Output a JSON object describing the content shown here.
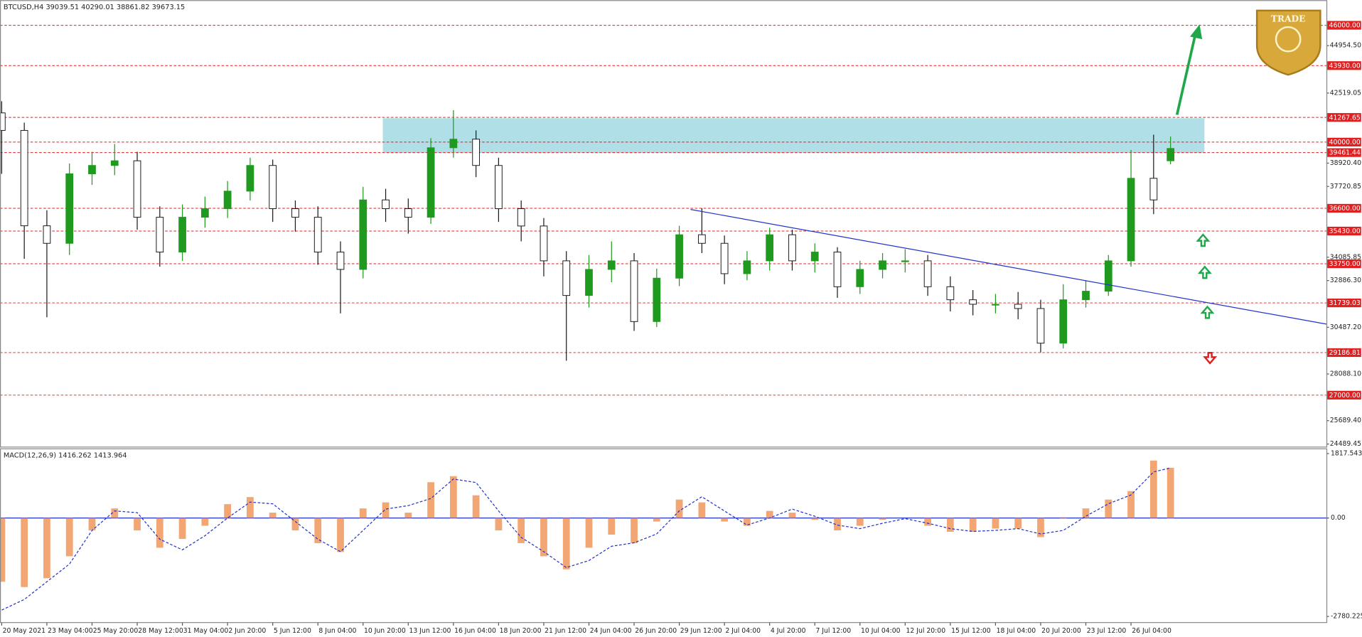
{
  "chart_data": [
    {
      "type": "candlestick",
      "title": "BTCUSD,H4",
      "logo_text": "TRADE",
      "up_color": "#1f9a1f",
      "down_color": "#1a1a1a",
      "level_color": "#e02020",
      "zone_color": "#a9dbe4",
      "trend_color": "#2233cc",
      "xlim": [
        -0.6,
        469.2
      ],
      "ylim": [
        24355,
        47294
      ],
      "x": [
        0,
        8,
        16,
        24,
        32,
        40,
        48,
        56,
        64,
        72,
        80,
        88,
        96,
        104,
        112,
        120,
        128,
        136,
        144,
        152,
        160,
        168,
        176,
        184,
        192,
        200,
        208,
        216,
        224,
        232,
        240,
        248,
        256,
        264,
        272,
        280,
        288,
        296,
        304,
        312,
        320,
        328,
        336,
        344,
        352,
        360,
        368,
        376,
        384,
        392,
        400,
        408,
        414
      ],
      "open": [
        41500,
        40600,
        35700,
        34800,
        38370,
        38800,
        39040,
        36140,
        34350,
        36140,
        36580,
        37480,
        38800,
        36580,
        36140,
        34350,
        33460,
        37030,
        36580,
        36140,
        39710,
        40150,
        38800,
        36580,
        35690,
        33900,
        32120,
        33460,
        33900,
        30780,
        33010,
        35240,
        34800,
        33240,
        33900,
        35240,
        33900,
        34350,
        32570,
        33460,
        33900,
        33900,
        32570,
        31900,
        31670,
        31670,
        31450,
        29670,
        31900,
        32340,
        33900,
        38140,
        39039.51
      ],
      "high": [
        42100,
        41000,
        36500,
        38900,
        39500,
        39900,
        39500,
        36700,
        36800,
        37200,
        38000,
        39200,
        39100,
        37000,
        36700,
        34900,
        37700,
        37600,
        37100,
        40200,
        41640,
        40600,
        39200,
        37000,
        36100,
        34400,
        34200,
        34900,
        34300,
        33500,
        35700,
        36600,
        35200,
        34400,
        35600,
        35500,
        34800,
        34600,
        33900,
        34300,
        34500,
        34200,
        33100,
        32400,
        32200,
        32300,
        31900,
        32700,
        32900,
        34200,
        39600,
        40380,
        40290.01
      ],
      "low": [
        38370,
        34000,
        31000,
        34200,
        37800,
        38300,
        35500,
        33600,
        33900,
        35600,
        36100,
        37000,
        35900,
        35400,
        33700,
        31200,
        33000,
        35900,
        35300,
        35800,
        39200,
        38200,
        35900,
        34900,
        33100,
        28770,
        31500,
        32800,
        30300,
        30500,
        32600,
        34300,
        32700,
        32900,
        33400,
        33400,
        33300,
        32000,
        32200,
        33000,
        33300,
        32100,
        31300,
        31100,
        31200,
        30900,
        29200,
        29400,
        31500,
        32100,
        33600,
        36300,
        38861.82
      ],
      "close": [
        40600,
        35700,
        34800,
        38370,
        38800,
        39040,
        36140,
        34350,
        36140,
        36580,
        37480,
        38800,
        36580,
        36140,
        34350,
        33460,
        37030,
        36580,
        36140,
        39710,
        40150,
        38800,
        36580,
        35690,
        33900,
        32120,
        33460,
        33900,
        30780,
        33010,
        35240,
        34800,
        33240,
        33900,
        35240,
        33900,
        34350,
        32570,
        33460,
        33900,
        33900,
        32570,
        31900,
        31670,
        31670,
        31450,
        29670,
        31900,
        32340,
        33900,
        38140,
        37030,
        39673.15
      ],
      "yticks": [
        {
          "value": 44954.5,
          "label": "44954.50"
        },
        {
          "value": 42519.05,
          "label": "42519.05"
        },
        {
          "value": 38920.4,
          "label": "38920.40"
        },
        {
          "value": 37720.85,
          "label": "37720.85"
        },
        {
          "value": 34085.85,
          "label": "34085.85"
        },
        {
          "value": 32886.3,
          "label": "32886.30"
        },
        {
          "value": 30487.2,
          "label": "30487.20"
        },
        {
          "value": 28088.1,
          "label": "28088.10"
        },
        {
          "value": 25689.4,
          "label": "25689.40"
        },
        {
          "value": 24489.45,
          "label": "24489.45"
        }
      ],
      "levels": [
        {
          "value": 46000,
          "label": "46000.00"
        },
        {
          "value": 43930,
          "label": "43930.00"
        },
        {
          "value": 41267.65,
          "label": "41267.65"
        },
        {
          "value": 40000,
          "label": "40000.00"
        },
        {
          "value": 39461.44,
          "label": "39461.44"
        },
        {
          "value": 36600,
          "label": "36600.00"
        },
        {
          "value": 35430,
          "label": "35430.00"
        },
        {
          "value": 33750,
          "label": "33750.00"
        },
        {
          "value": 31739.03,
          "label": "31739.03"
        },
        {
          "value": 29186.81,
          "label": "29186.81"
        },
        {
          "value": 27000,
          "label": "27000.00"
        }
      ],
      "zone": {
        "x": [
          135,
          426
        ],
        "y": [
          39440,
          41225
        ]
      },
      "trendline": {
        "x": [
          244,
          469.2
        ],
        "y": [
          36540,
          30650
        ]
      },
      "xticks": [
        {
          "value": 0,
          "label": "20 May 2021"
        },
        {
          "value": 16,
          "label": "23 May 04:00"
        },
        {
          "value": 32,
          "label": "25 May 20:00"
        },
        {
          "value": 48,
          "label": "28 May 12:00"
        },
        {
          "value": 64,
          "label": "31 May 04:00"
        },
        {
          "value": 80,
          "label": "2 Jun 20:00"
        },
        {
          "value": 96,
          "label": "5 Jun 12:00"
        },
        {
          "value": 112,
          "label": "8 Jun 04:00"
        },
        {
          "value": 128,
          "label": "10 Jun 20:00"
        },
        {
          "value": 144,
          "label": "13 Jun 12:00"
        },
        {
          "value": 160,
          "label": "16 Jun 04:00"
        },
        {
          "value": 176,
          "label": "18 Jun 20:00"
        },
        {
          "value": 192,
          "label": "21 Jun 12:00"
        },
        {
          "value": 208,
          "label": "24 Jun 04:00"
        },
        {
          "value": 224,
          "label": "26 Jun 20:00"
        },
        {
          "value": 240,
          "label": "29 Jun 12:00"
        },
        {
          "value": 256,
          "label": "2 Jul 04:00"
        },
        {
          "value": 272,
          "label": "4 Jul 20:00"
        },
        {
          "value": 288,
          "label": "7 Jul 12:00"
        },
        {
          "value": 304,
          "label": "10 Jul 04:00"
        },
        {
          "value": 320,
          "label": "12 Jul 20:00"
        },
        {
          "value": 336,
          "label": "15 Jul 12:00"
        },
        {
          "value": 352,
          "label": "18 Jul 04:00"
        },
        {
          "value": 368,
          "label": "20 Jul 20:00"
        },
        {
          "value": 384,
          "label": "23 Jul 12:00"
        },
        {
          "value": 400,
          "label": "26 Jul 04:00"
        }
      ]
    },
    {
      "type": "macd",
      "title": "MACD(12,26,9)",
      "hist_color": "#ee8844",
      "signal_color": "#2233cc",
      "ylim": [
        -2940,
        1965
      ],
      "yticks": [
        1817.543,
        {
          "value": 0,
          "label": "0.00"
        },
        -2780.225
      ],
      "histogram": [
        -1800,
        -1950,
        -1700,
        -1080,
        -350,
        270,
        -350,
        -840,
        -590,
        -220,
        390,
        590,
        150,
        -350,
        -710,
        -960,
        270,
        440,
        150,
        1010,
        1180,
        640,
        -350,
        -710,
        -1080,
        -1450,
        -840,
        -470,
        -710,
        -100,
        520,
        440,
        -100,
        -220,
        200,
        150,
        -50,
        -350,
        -220,
        -50,
        0,
        -220,
        -390,
        -390,
        -300,
        -300,
        -540,
        20,
        270,
        520,
        760,
        1620,
        1416.262
      ],
      "signal": [
        -2600,
        -2300,
        -1800,
        -1300,
        -350,
        200,
        150,
        -600,
        -900,
        -500,
        0,
        450,
        400,
        -100,
        -600,
        -950,
        -350,
        250,
        350,
        550,
        1100,
        1000,
        200,
        -550,
        -950,
        -1400,
        -1200,
        -800,
        -700,
        -450,
        200,
        600,
        200,
        -200,
        0,
        250,
        50,
        -200,
        -300,
        -150,
        -20,
        -150,
        -300,
        -380,
        -350,
        -300,
        -450,
        -350,
        50,
        400,
        650,
        1300,
        1413.964
      ]
    }
  ]
}
